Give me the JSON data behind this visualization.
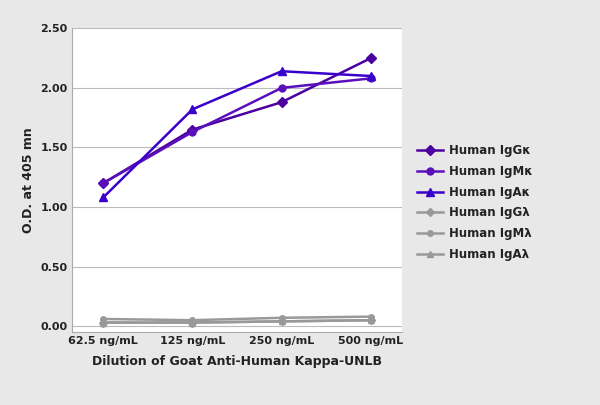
{
  "x_labels": [
    "62.5 ng/mL",
    "125 ng/mL",
    "250 ng/mL",
    "500 ng/mL"
  ],
  "x_positions": [
    0,
    1,
    2,
    3
  ],
  "series": [
    {
      "label": "Human IgGκ",
      "color": "#4B00A0",
      "marker": "D",
      "markersize": 5,
      "values": [
        1.2,
        1.65,
        1.88,
        2.25
      ]
    },
    {
      "label": "Human IgMκ",
      "color": "#5B0FBB",
      "marker": "o",
      "markersize": 5,
      "values": [
        1.2,
        1.63,
        2.0,
        2.08
      ]
    },
    {
      "label": "Human IgAκ",
      "color": "#3A00CC",
      "marker": "^",
      "markersize": 6,
      "values": [
        1.08,
        1.82,
        2.14,
        2.1
      ]
    },
    {
      "label": "Human IgGλ",
      "color": "#999999",
      "marker": "D",
      "markersize": 4,
      "values": [
        0.03,
        0.03,
        0.04,
        0.05
      ]
    },
    {
      "label": "Human IgMλ",
      "color": "#999999",
      "marker": "o",
      "markersize": 4,
      "values": [
        0.06,
        0.05,
        0.07,
        0.08
      ]
    },
    {
      "label": "Human IgAλ",
      "color": "#999999",
      "marker": "^",
      "markersize": 5,
      "values": [
        0.03,
        0.03,
        0.04,
        0.05
      ]
    }
  ],
  "ylabel": "O.D. at 405 mn",
  "xlabel": "Dilution of Goat Anti-Human Kappa-UNLB",
  "ylim": [
    -0.05,
    2.5
  ],
  "yticks": [
    0.0,
    0.5,
    1.0,
    1.5,
    2.0,
    2.5
  ],
  "background_color": "#e8e8e8",
  "plot_bg_color": "#ffffff",
  "grid_color": "#bbbbbb",
  "label_fontsize": 9,
  "tick_fontsize": 8,
  "legend_fontsize": 8.5,
  "linewidth": 1.8,
  "figsize": [
    6.0,
    4.05
  ],
  "dpi": 100
}
